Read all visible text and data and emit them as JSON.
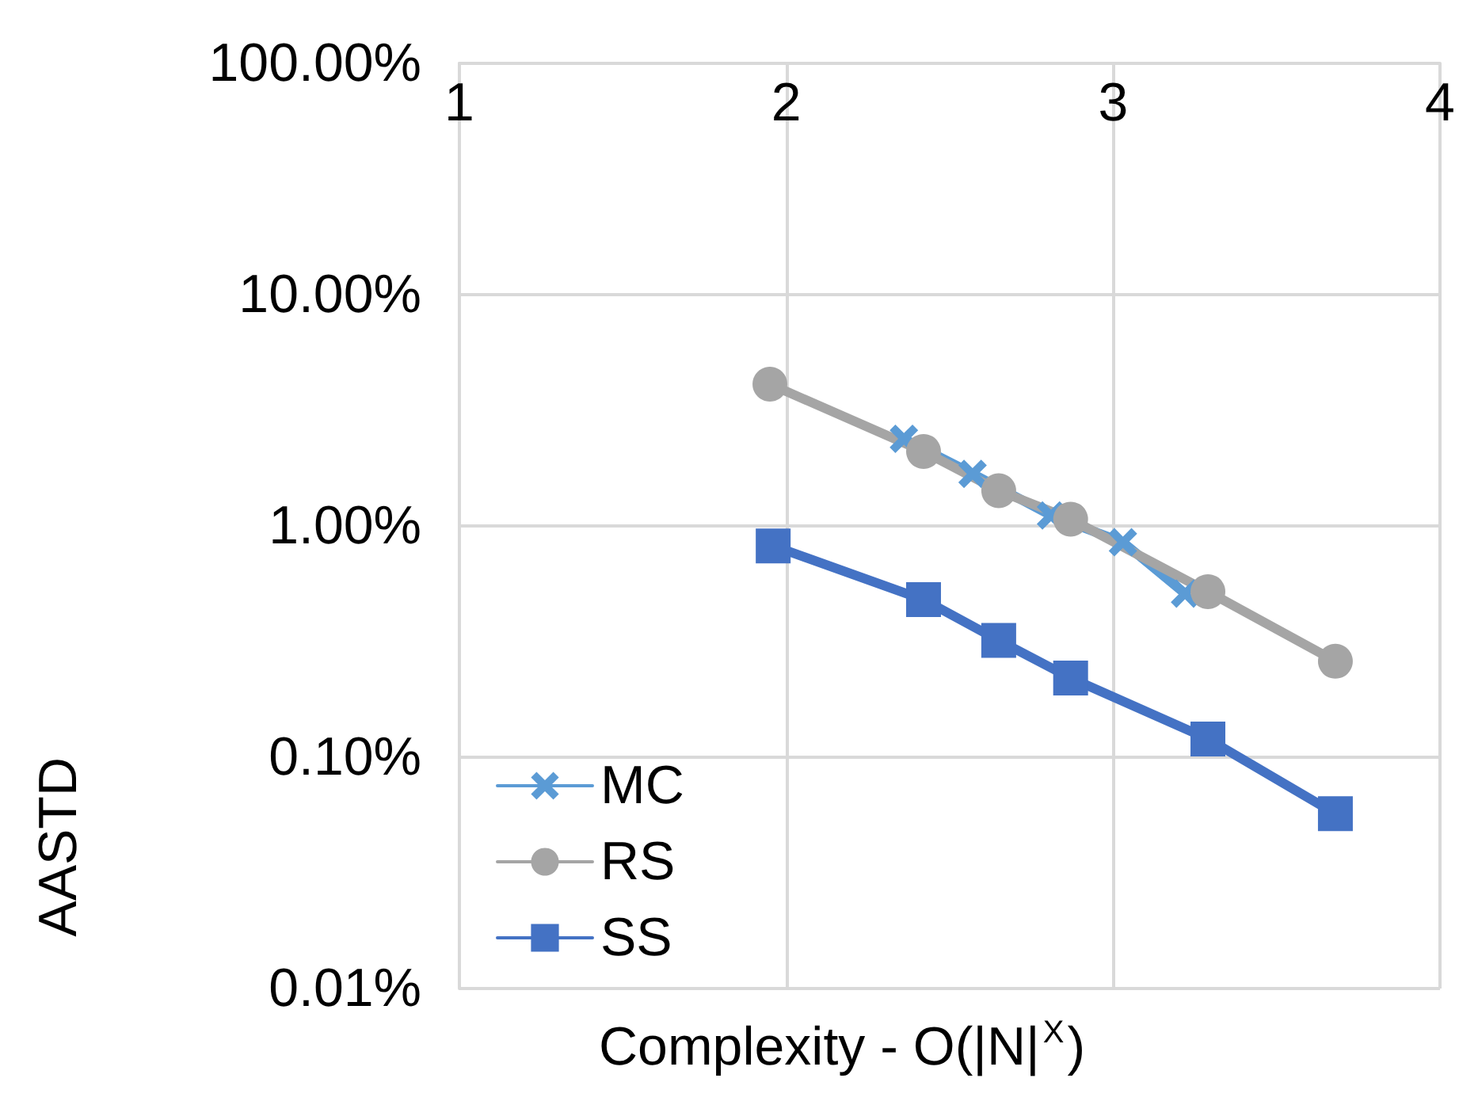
{
  "chart_data": {
    "type": "line",
    "xlabel": "Complexity - O(|N|$^{X}$)",
    "ylabel": "AASTD",
    "xlim": [
      1,
      4
    ],
    "xticks": [
      1,
      2,
      3,
      4
    ],
    "ylim": [
      0.01,
      100
    ],
    "log": "y",
    "yticks": [
      {
        "value": 0.01,
        "label": "0.01%"
      },
      {
        "value": 0.1,
        "label": "0.10%"
      },
      {
        "value": 1,
        "label": "1.00%"
      },
      {
        "value": 10,
        "label": "10.00%"
      },
      {
        "value": 100,
        "label": "100.00%"
      }
    ],
    "grid": true,
    "legend": "bottom left",
    "line_style": "solid",
    "series": [
      {
        "name": "MC",
        "color": "#5b9bd5",
        "marker": "cross",
        "x": [
          2.36,
          2.57,
          2.81,
          3.03,
          3.22
        ],
        "values": [
          2.38,
          1.68,
          1.11,
          0.85,
          0.51
        ]
      },
      {
        "name": "RS",
        "color": "#a5a5a5",
        "marker": "circle",
        "x": [
          1.95,
          2.42,
          2.65,
          2.87,
          3.29,
          3.68
        ],
        "values": [
          4.1,
          2.1,
          1.42,
          1.07,
          0.52,
          0.26
        ]
      },
      {
        "name": "SS",
        "color": "#4472c4",
        "marker": "square",
        "x": [
          1.96,
          2.42,
          2.65,
          2.87,
          3.29,
          3.68
        ],
        "values": [
          0.82,
          0.48,
          0.32,
          0.22,
          0.12,
          0.057
        ]
      }
    ]
  }
}
